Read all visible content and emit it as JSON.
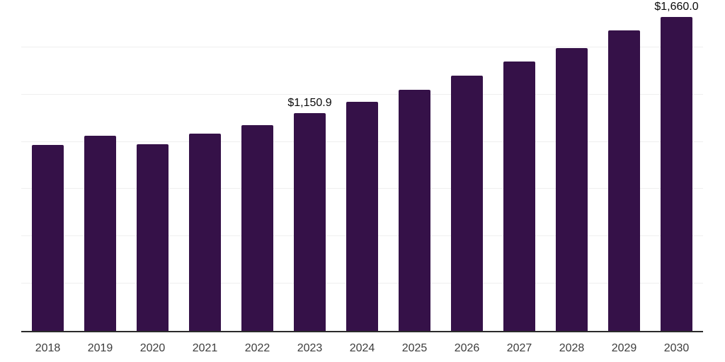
{
  "chart_data": {
    "type": "bar",
    "title": "",
    "xlabel": "",
    "ylabel": "",
    "categories": [
      "2018",
      "2019",
      "2020",
      "2021",
      "2022",
      "2023",
      "2024",
      "2025",
      "2026",
      "2027",
      "2028",
      "2029",
      "2030"
    ],
    "values": [
      983,
      1031,
      987,
      1042,
      1090,
      1150.9,
      1211,
      1276,
      1349,
      1424,
      1495,
      1589,
      1660
    ],
    "labeled_points": [
      {
        "category": "2023",
        "label": "$1,150.9"
      },
      {
        "category": "2030",
        "label": "$1,660.0"
      }
    ],
    "ylim": [
      0,
      1750
    ],
    "gridline_step": 250,
    "grid": true,
    "legend": "none",
    "colors": {
      "bar": "#351148",
      "axis_line": "#2b2b2b",
      "gridline": "#efefef",
      "tick_label": "#3d3d3d",
      "value_label": "#0a0a0a",
      "background": "#ffffff"
    }
  }
}
